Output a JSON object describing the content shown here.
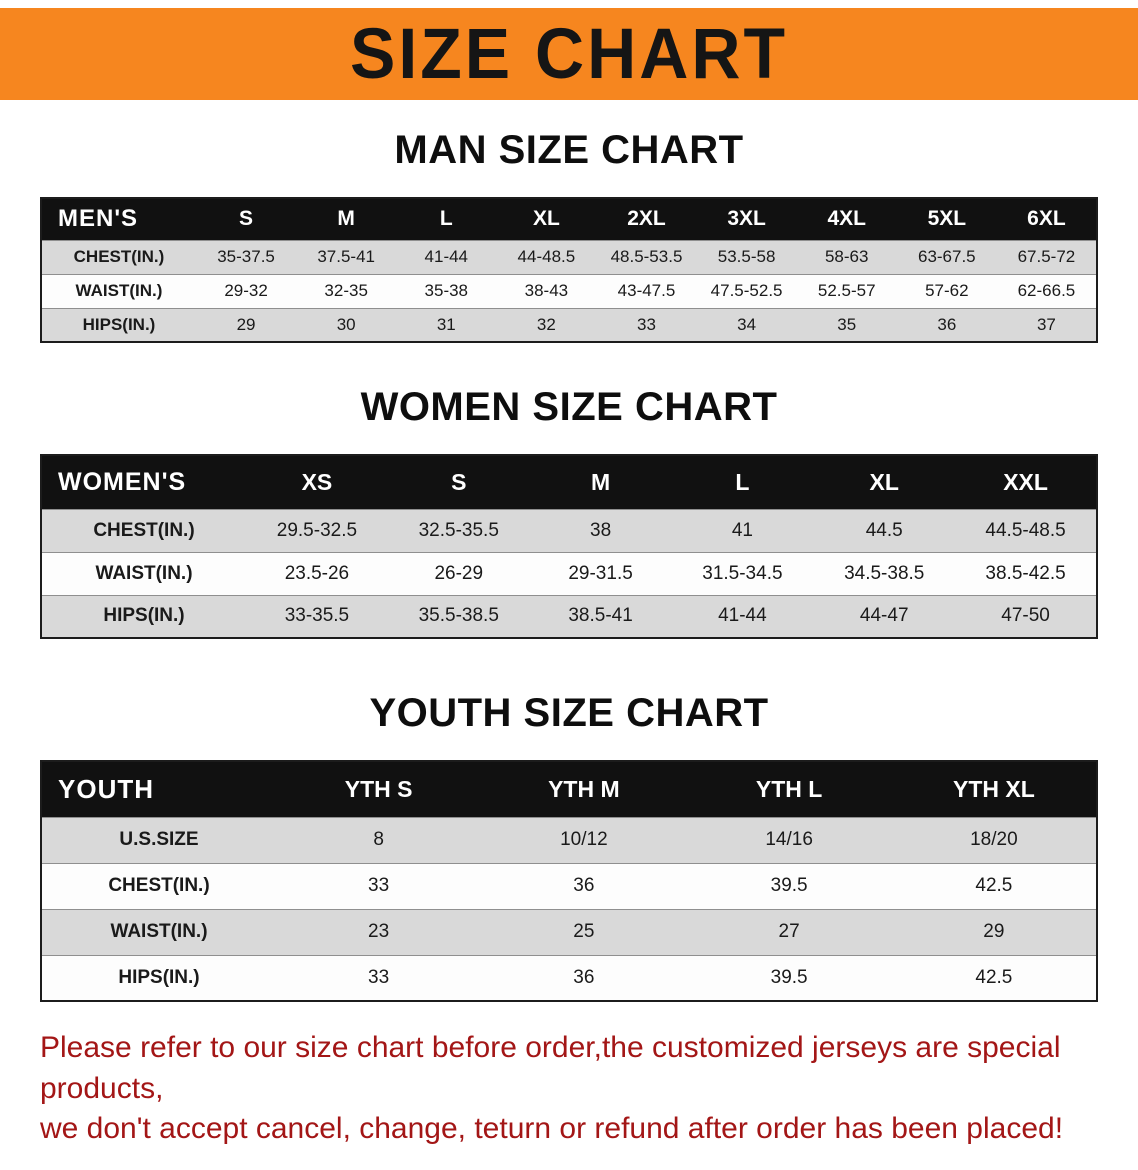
{
  "banner": {
    "title": "SIZE CHART",
    "bg_color": "#f6861f"
  },
  "sections": [
    {
      "heading": "MAN SIZE CHART",
      "table": {
        "header": {
          "label": "MEN'S",
          "columns": [
            "S",
            "M",
            "L",
            "XL",
            "2XL",
            "3XL",
            "4XL",
            "5XL",
            "6XL"
          ]
        },
        "rows": [
          {
            "label": "CHEST(IN.)",
            "values": [
              "35-37.5",
              "37.5-41",
              "41-44",
              "44-48.5",
              "48.5-53.5",
              "53.5-58",
              "58-63",
              "63-67.5",
              "67.5-72"
            ]
          },
          {
            "label": "WAIST(IN.)",
            "values": [
              "29-32",
              "32-35",
              "35-38",
              "38-43",
              "43-47.5",
              "47.5-52.5",
              "52.5-57",
              "57-62",
              "62-66.5"
            ]
          },
          {
            "label": "HIPS(IN.)",
            "values": [
              "29",
              "30",
              "31",
              "32",
              "33",
              "34",
              "35",
              "36",
              "37"
            ]
          }
        ]
      }
    },
    {
      "heading": "WOMEN SIZE CHART",
      "table": {
        "header": {
          "label": "WOMEN'S",
          "columns": [
            "XS",
            "S",
            "M",
            "L",
            "XL",
            "XXL"
          ]
        },
        "rows": [
          {
            "label": "CHEST(IN.)",
            "values": [
              "29.5-32.5",
              "32.5-35.5",
              "38",
              "41",
              "44.5",
              "44.5-48.5"
            ]
          },
          {
            "label": "WAIST(IN.)",
            "values": [
              "23.5-26",
              "26-29",
              "29-31.5",
              "31.5-34.5",
              "34.5-38.5",
              "38.5-42.5"
            ]
          },
          {
            "label": "HIPS(IN.)",
            "values": [
              "33-35.5",
              "35.5-38.5",
              "38.5-41",
              "41-44",
              "44-47",
              "47-50"
            ]
          }
        ]
      }
    },
    {
      "heading": "YOUTH SIZE CHART",
      "table": {
        "header": {
          "label": "YOUTH",
          "columns": [
            "YTH S",
            "YTH M",
            "YTH L",
            "YTH XL"
          ]
        },
        "rows": [
          {
            "label": "U.S.SIZE",
            "values": [
              "8",
              "10/12",
              "14/16",
              "18/20"
            ]
          },
          {
            "label": "CHEST(IN.)",
            "values": [
              "33",
              "36",
              "39.5",
              "42.5"
            ]
          },
          {
            "label": "WAIST(IN.)",
            "values": [
              "23",
              "25",
              "27",
              "29"
            ]
          },
          {
            "label": "HIPS(IN.)",
            "values": [
              "33",
              "36",
              "39.5",
              "42.5"
            ]
          }
        ]
      }
    }
  ],
  "footer": {
    "lines": [
      "Please refer to our size chart before order,the customized jerseys are special products,",
      "we don't accept cancel, change, teturn or refund after order has been placed!"
    ],
    "text_color": "#a31616"
  }
}
